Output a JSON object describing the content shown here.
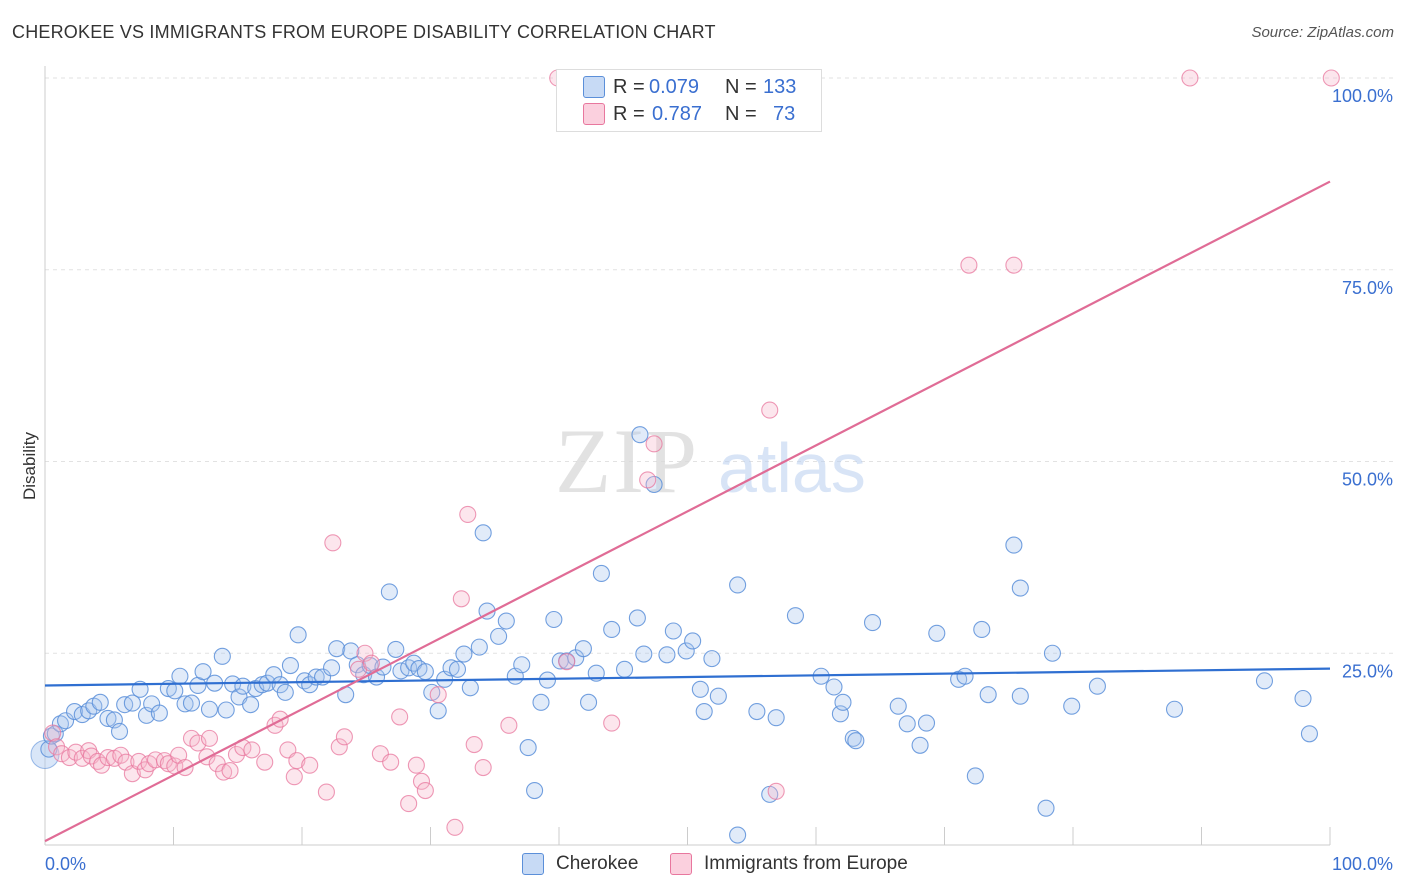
{
  "title": "CHEROKEE VS IMMIGRANTS FROM EUROPE DISABILITY CORRELATION CHART",
  "source": "Source: ZipAtlas.com",
  "watermark": {
    "zip": "ZIP",
    "atlas": "atlas"
  },
  "legend_box": {
    "rows": [
      {
        "r_label": "R =",
        "r_value": "0.079",
        "n_label": "N =",
        "n_value": "133"
      },
      {
        "r_label": "R =",
        "r_value": "0.787",
        "n_label": "N =",
        "n_value": "73"
      }
    ]
  },
  "colors": {
    "blue": "#5b8fd9",
    "blue_fill": "#aac7ef",
    "pink": "#e8779e",
    "pink_fill": "#f6b7cb",
    "accent_text": "#3a6fd0"
  },
  "chart_data": {
    "type": "scatter",
    "title": "CHEROKEE VS IMMIGRANTS FROM EUROPE DISABILITY CORRELATION CHART",
    "xlabel": "",
    "ylabel": "Disability",
    "xlim": [
      0,
      100
    ],
    "ylim": [
      0,
      100
    ],
    "x_tick_labels": [
      "0.0%",
      "100.0%"
    ],
    "y_tick_labels": [
      "25.0%",
      "50.0%",
      "75.0%",
      "100.0%"
    ],
    "y_tick_values": [
      25,
      50,
      75,
      100
    ],
    "legend_position": "top-center",
    "series": [
      {
        "name": "Cherokee",
        "color": "#5b8fd9",
        "R": 0.079,
        "N": 133,
        "trend": {
          "x": [
            0,
            100
          ],
          "y": [
            20.8,
            23.0
          ]
        },
        "points": [
          [
            0.3,
            12.5
          ],
          [
            0.5,
            14.2
          ],
          [
            0.8,
            14.5
          ],
          [
            1.2,
            15.8
          ],
          [
            1.6,
            16.2
          ],
          [
            2.3,
            17.4
          ],
          [
            2.9,
            17.0
          ],
          [
            3.4,
            17.5
          ],
          [
            3.8,
            18.1
          ],
          [
            4.3,
            18.6
          ],
          [
            4.9,
            16.5
          ],
          [
            5.4,
            16.3
          ],
          [
            5.8,
            14.8
          ],
          [
            6.2,
            18.3
          ],
          [
            6.8,
            18.5
          ],
          [
            7.4,
            20.3
          ],
          [
            7.9,
            16.9
          ],
          [
            8.3,
            18.4
          ],
          [
            8.9,
            17.2
          ],
          [
            9.6,
            20.4
          ],
          [
            10.1,
            20.1
          ],
          [
            10.5,
            22.0
          ],
          [
            10.9,
            18.4
          ],
          [
            11.4,
            18.5
          ],
          [
            11.9,
            20.8
          ],
          [
            12.3,
            22.6
          ],
          [
            12.8,
            17.7
          ],
          [
            13.2,
            21.1
          ],
          [
            13.8,
            24.6
          ],
          [
            14.1,
            17.6
          ],
          [
            14.6,
            21.0
          ],
          [
            15.1,
            19.3
          ],
          [
            15.4,
            20.7
          ],
          [
            16.0,
            18.3
          ],
          [
            16.4,
            20.4
          ],
          [
            16.9,
            20.9
          ],
          [
            17.3,
            21.1
          ],
          [
            17.8,
            22.2
          ],
          [
            18.3,
            20.9
          ],
          [
            18.7,
            19.9
          ],
          [
            19.1,
            23.4
          ],
          [
            19.7,
            27.4
          ],
          [
            20.2,
            21.4
          ],
          [
            20.6,
            20.9
          ],
          [
            21.1,
            21.9
          ],
          [
            21.6,
            21.9
          ],
          [
            22.3,
            23.1
          ],
          [
            22.7,
            25.6
          ],
          [
            23.4,
            19.6
          ],
          [
            23.8,
            25.3
          ],
          [
            24.3,
            23.5
          ],
          [
            24.8,
            22.2
          ],
          [
            25.3,
            23.4
          ],
          [
            25.8,
            21.9
          ],
          [
            26.3,
            23.2
          ],
          [
            26.8,
            33.0
          ],
          [
            27.3,
            25.5
          ],
          [
            27.7,
            22.7
          ],
          [
            28.3,
            23.1
          ],
          [
            28.7,
            23.7
          ],
          [
            29.1,
            23.0
          ],
          [
            29.6,
            22.6
          ],
          [
            30.1,
            19.9
          ],
          [
            30.6,
            17.5
          ],
          [
            31.1,
            21.6
          ],
          [
            31.6,
            23.1
          ],
          [
            32.1,
            22.9
          ],
          [
            32.6,
            24.9
          ],
          [
            33.1,
            20.5
          ],
          [
            33.8,
            25.8
          ],
          [
            34.1,
            40.7
          ],
          [
            34.4,
            30.5
          ],
          [
            35.3,
            27.2
          ],
          [
            35.9,
            29.2
          ],
          [
            36.6,
            22.0
          ],
          [
            37.1,
            23.5
          ],
          [
            37.6,
            12.7
          ],
          [
            38.1,
            7.1
          ],
          [
            38.6,
            18.6
          ],
          [
            39.1,
            21.5
          ],
          [
            39.6,
            29.4
          ],
          [
            40.1,
            24.0
          ],
          [
            40.6,
            24.0
          ],
          [
            41.3,
            24.4
          ],
          [
            41.9,
            25.6
          ],
          [
            42.3,
            18.6
          ],
          [
            42.9,
            22.4
          ],
          [
            43.3,
            35.4
          ],
          [
            44.1,
            28.1
          ],
          [
            45.1,
            22.9
          ],
          [
            46.1,
            29.6
          ],
          [
            46.6,
            24.9
          ],
          [
            46.3,
            53.5
          ],
          [
            47.4,
            47.0
          ],
          [
            48.4,
            24.8
          ],
          [
            48.9,
            27.9
          ],
          [
            49.9,
            25.3
          ],
          [
            50.4,
            26.6
          ],
          [
            51.0,
            20.3
          ],
          [
            51.3,
            17.4
          ],
          [
            51.9,
            24.3
          ],
          [
            52.4,
            19.4
          ],
          [
            53.9,
            33.9
          ],
          [
            55.4,
            17.4
          ],
          [
            56.9,
            16.6
          ],
          [
            56.4,
            6.6
          ],
          [
            53.9,
            1.3
          ],
          [
            58.4,
            29.9
          ],
          [
            60.4,
            22.0
          ],
          [
            61.4,
            20.6
          ],
          [
            61.9,
            17.1
          ],
          [
            62.1,
            18.6
          ],
          [
            62.9,
            13.9
          ],
          [
            63.1,
            13.6
          ],
          [
            64.4,
            29.0
          ],
          [
            66.4,
            18.1
          ],
          [
            67.1,
            15.8
          ],
          [
            68.1,
            13.0
          ],
          [
            68.6,
            15.9
          ],
          [
            69.4,
            27.6
          ],
          [
            71.1,
            21.6
          ],
          [
            71.6,
            22.0
          ],
          [
            72.4,
            9.0
          ],
          [
            72.9,
            28.1
          ],
          [
            73.4,
            19.6
          ],
          [
            75.9,
            33.5
          ],
          [
            75.4,
            39.1
          ],
          [
            75.9,
            19.4
          ],
          [
            77.9,
            4.8
          ],
          [
            78.4,
            25.0
          ],
          [
            79.9,
            18.1
          ],
          [
            81.9,
            20.7
          ],
          [
            87.9,
            17.7
          ],
          [
            94.9,
            21.4
          ],
          [
            97.9,
            19.1
          ],
          [
            98.4,
            14.5
          ]
        ]
      },
      {
        "name": "Immigrants from Europe",
        "color": "#e8779e",
        "R": 0.787,
        "N": 73,
        "trend": {
          "x": [
            0,
            100
          ],
          "y": [
            0.5,
            86.5
          ]
        },
        "points": [
          [
            0.6,
            14.6
          ],
          [
            0.9,
            12.8
          ],
          [
            1.3,
            11.9
          ],
          [
            1.9,
            11.4
          ],
          [
            2.4,
            12.1
          ],
          [
            2.9,
            11.3
          ],
          [
            3.4,
            12.3
          ],
          [
            3.6,
            11.6
          ],
          [
            4.1,
            10.9
          ],
          [
            4.4,
            10.4
          ],
          [
            4.9,
            11.4
          ],
          [
            5.4,
            11.3
          ],
          [
            5.9,
            11.7
          ],
          [
            6.3,
            10.8
          ],
          [
            6.8,
            9.3
          ],
          [
            7.3,
            10.9
          ],
          [
            7.8,
            9.8
          ],
          [
            8.1,
            10.6
          ],
          [
            8.6,
            11.1
          ],
          [
            9.3,
            11.0
          ],
          [
            9.6,
            10.6
          ],
          [
            10.1,
            10.3
          ],
          [
            10.4,
            11.7
          ],
          [
            10.9,
            10.1
          ],
          [
            11.4,
            13.9
          ],
          [
            11.9,
            13.3
          ],
          [
            12.6,
            11.5
          ],
          [
            12.8,
            13.9
          ],
          [
            13.4,
            10.6
          ],
          [
            13.9,
            9.5
          ],
          [
            14.4,
            9.7
          ],
          [
            14.9,
            11.8
          ],
          [
            15.4,
            12.7
          ],
          [
            16.1,
            12.4
          ],
          [
            17.1,
            10.8
          ],
          [
            17.9,
            15.6
          ],
          [
            18.3,
            16.4
          ],
          [
            18.9,
            12.4
          ],
          [
            19.4,
            8.9
          ],
          [
            19.6,
            11.0
          ],
          [
            20.6,
            10.4
          ],
          [
            21.9,
            6.9
          ],
          [
            22.4,
            39.4
          ],
          [
            22.9,
            12.8
          ],
          [
            23.3,
            14.1
          ],
          [
            24.4,
            22.9
          ],
          [
            24.9,
            25.0
          ],
          [
            25.4,
            23.7
          ],
          [
            26.1,
            11.9
          ],
          [
            26.9,
            10.8
          ],
          [
            27.6,
            16.7
          ],
          [
            28.3,
            5.4
          ],
          [
            28.9,
            10.4
          ],
          [
            29.3,
            8.3
          ],
          [
            29.6,
            7.1
          ],
          [
            30.6,
            19.6
          ],
          [
            31.9,
            2.3
          ],
          [
            32.4,
            32.1
          ],
          [
            32.9,
            43.1
          ],
          [
            33.4,
            13.1
          ],
          [
            34.1,
            10.1
          ],
          [
            36.1,
            15.6
          ],
          [
            40.6,
            23.9
          ],
          [
            44.1,
            15.9
          ],
          [
            46.9,
            47.6
          ],
          [
            47.4,
            52.3
          ],
          [
            56.4,
            56.7
          ],
          [
            56.9,
            7.0
          ],
          [
            71.9,
            75.6
          ],
          [
            75.4,
            75.6
          ],
          [
            89.1,
            100.0
          ],
          [
            100.1,
            100.0
          ],
          [
            39.9,
            100.0
          ]
        ]
      }
    ]
  },
  "bottom_legend": [
    {
      "label": "Cherokee"
    },
    {
      "label": "Immigrants from Europe"
    }
  ]
}
